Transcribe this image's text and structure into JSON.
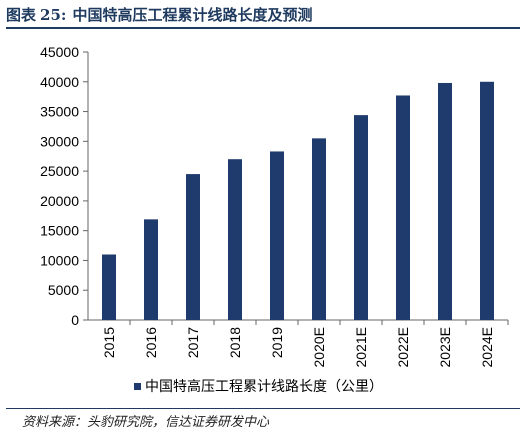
{
  "figure": {
    "label": "图表",
    "number": "25:",
    "title": "中国特高压工程累计线路长度及预测"
  },
  "source": "资料来源：头豹研究院，信达证券研发中心",
  "colors": {
    "bar": "#1f3a6d",
    "title": "#1f3a5f",
    "axis": "#666666"
  },
  "chart_data": {
    "type": "bar",
    "categories": [
      "2015",
      "2016",
      "2017",
      "2018",
      "2019",
      "2020E",
      "2021E",
      "2022E",
      "2023E",
      "2024E"
    ],
    "series": [
      {
        "name": "中国特高压工程累计线路长度（公里）",
        "values": [
          11000,
          16900,
          24500,
          27000,
          28300,
          30500,
          34400,
          37700,
          39800,
          40000
        ]
      }
    ],
    "ylim": [
      0,
      45000
    ],
    "yticks": [
      "0",
      "5000",
      "10000",
      "15000",
      "20000",
      "25000",
      "30000",
      "35000",
      "40000",
      "45000"
    ],
    "grid": false,
    "legend_position": "bottom"
  }
}
